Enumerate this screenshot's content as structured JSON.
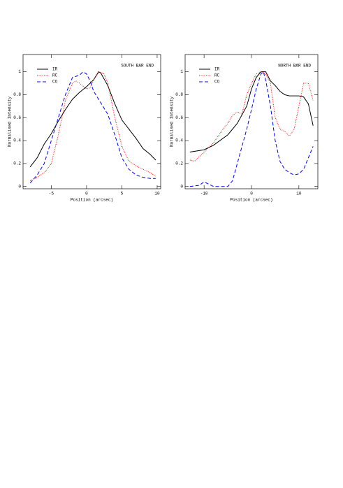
{
  "chart_data": [
    {
      "type": "line",
      "annotation": "SOUTH BAR END",
      "xlabel": "Position (arcsec)",
      "ylabel": "Normalised Intensity",
      "xlim": [
        -9,
        10.5
      ],
      "ylim": [
        -0.02,
        1.15
      ],
      "xticks": [
        -5,
        0,
        5,
        10
      ],
      "yticks": [
        0,
        0.2,
        0.4,
        0.6,
        0.8,
        1
      ],
      "legend": "upper left",
      "series": [
        {
          "name": "IR",
          "color": "#000000",
          "linestyle": "solid",
          "x": [
            -8,
            -7,
            -6,
            -5,
            -4,
            -3,
            -2,
            -1,
            0,
            1,
            1.7,
            2,
            3,
            4,
            5,
            6,
            7,
            8,
            9,
            9.8
          ],
          "values": [
            0.17,
            0.25,
            0.37,
            0.46,
            0.57,
            0.67,
            0.76,
            0.82,
            0.87,
            0.93,
            1.0,
            0.99,
            0.88,
            0.72,
            0.58,
            0.5,
            0.42,
            0.33,
            0.28,
            0.23
          ]
        },
        {
          "name": "RC",
          "color": "#ff0000",
          "linestyle": "dotted",
          "x": [
            -8,
            -7,
            -6,
            -5,
            -4,
            -3,
            -2,
            -1.5,
            -1,
            0,
            0.5,
            1,
            1.8,
            2.5,
            3,
            4,
            5,
            6,
            7,
            8,
            9,
            9.8
          ],
          "values": [
            0.05,
            0.08,
            0.12,
            0.2,
            0.45,
            0.75,
            0.9,
            0.92,
            0.9,
            0.85,
            0.86,
            0.93,
            1.0,
            0.98,
            0.9,
            0.6,
            0.35,
            0.22,
            0.18,
            0.15,
            0.12,
            0.09
          ]
        },
        {
          "name": "CO",
          "color": "#0000ff",
          "linestyle": "dashed",
          "x": [
            -8,
            -7,
            -6,
            -5,
            -4,
            -3,
            -2,
            -1,
            -0.5,
            0,
            0.5,
            1,
            2,
            3,
            4,
            5,
            6,
            7,
            8,
            9,
            9.8
          ],
          "values": [
            0.03,
            0.1,
            0.2,
            0.4,
            0.6,
            0.8,
            0.95,
            0.97,
            1.0,
            0.98,
            0.92,
            0.83,
            0.73,
            0.63,
            0.45,
            0.25,
            0.15,
            0.1,
            0.08,
            0.07,
            0.07
          ]
        }
      ]
    },
    {
      "type": "line",
      "annotation": "NORTH BAR END",
      "xlabel": "Position (arcsec)",
      "ylabel": "Normalised Intensity",
      "xlim": [
        -14,
        14
      ],
      "ylim": [
        -0.02,
        1.15
      ],
      "xticks": [
        -10,
        0,
        10
      ],
      "yticks": [
        0,
        0.2,
        0.4,
        0.6,
        0.8,
        1
      ],
      "legend": "upper left",
      "series": [
        {
          "name": "IR",
          "color": "#000000",
          "linestyle": "solid",
          "x": [
            -13,
            -10,
            -8,
            -5,
            -3,
            -1,
            0,
            1,
            2,
            3,
            4,
            5,
            6,
            7,
            8,
            10,
            11,
            12,
            13
          ],
          "values": [
            0.3,
            0.32,
            0.36,
            0.45,
            0.55,
            0.7,
            0.85,
            0.95,
            1.0,
            1.0,
            0.92,
            0.88,
            0.83,
            0.8,
            0.79,
            0.79,
            0.78,
            0.72,
            0.53
          ]
        },
        {
          "name": "RC",
          "color": "#ff0000",
          "linestyle": "dotted",
          "x": [
            -13,
            -12,
            -10,
            -8,
            -6,
            -5,
            -4,
            -3,
            -2,
            -1,
            0,
            1,
            2,
            3,
            4,
            5,
            6,
            7,
            8,
            9,
            10,
            11,
            12,
            13
          ],
          "values": [
            0.23,
            0.22,
            0.3,
            0.38,
            0.5,
            0.55,
            0.62,
            0.65,
            0.63,
            0.8,
            0.9,
            0.98,
            1.0,
            0.98,
            0.9,
            0.6,
            0.5,
            0.48,
            0.44,
            0.5,
            0.7,
            0.9,
            0.9,
            0.75
          ]
        },
        {
          "name": "CO",
          "color": "#0000ff",
          "linestyle": "dashed",
          "x": [
            -13,
            -11,
            -10,
            -9,
            -8,
            -5,
            -4,
            -3,
            -2,
            -1,
            0,
            1,
            2,
            2.5,
            3,
            4,
            5,
            6,
            7,
            8,
            9,
            10,
            11,
            12,
            13
          ],
          "values": [
            0,
            0.01,
            0.04,
            0.02,
            0,
            0,
            0.05,
            0.2,
            0.35,
            0.5,
            0.67,
            0.85,
            0.98,
            1.0,
            0.93,
            0.7,
            0.4,
            0.22,
            0.15,
            0.12,
            0.1,
            0.11,
            0.15,
            0.25,
            0.35
          ]
        }
      ]
    }
  ]
}
